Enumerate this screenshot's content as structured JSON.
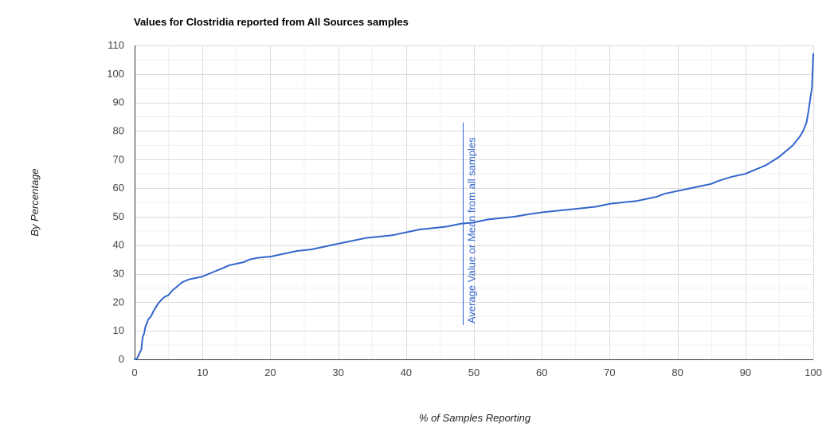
{
  "chart_data": {
    "type": "line",
    "title": "Values for Clostridia reported from All Sources samples",
    "xlabel": "% of Samples Reporting",
    "ylabel": "By Percentage",
    "xlim": [
      0,
      100
    ],
    "ylim": [
      0,
      110
    ],
    "x_ticks": [
      0,
      10,
      20,
      30,
      40,
      50,
      60,
      70,
      80,
      90,
      100
    ],
    "y_ticks": [
      0,
      10,
      20,
      30,
      40,
      50,
      60,
      70,
      80,
      90,
      100,
      110
    ],
    "grid": true,
    "colors": {
      "series": "#3366cc",
      "grid_major": "#dddddd",
      "grid_minor": "#f0f0f0",
      "axis_text": "#444444",
      "title_text": "#000000"
    },
    "annotation": {
      "text": "Average Value or Mean from all samples",
      "x": 48.4,
      "y_range": [
        12,
        83
      ]
    },
    "series": [
      {
        "x": [
          0,
          0.2,
          0.4,
          0.6,
          0.8,
          1.0,
          1.2,
          1.4,
          1.6,
          1.8,
          2.0,
          2.4,
          2.8,
          3.2,
          3.6,
          4.0,
          4.5,
          5.0,
          5.5,
          6.0,
          6.5,
          7.0,
          7.5,
          8.0,
          9.0,
          10,
          11,
          12,
          13,
          14,
          15,
          16,
          17,
          18,
          19,
          20,
          22,
          24,
          26,
          28,
          30,
          32,
          34,
          36,
          38,
          40,
          42,
          44,
          46,
          48,
          50,
          52,
          54,
          56,
          58,
          60,
          62,
          64,
          66,
          68,
          70,
          72,
          74,
          76,
          77,
          78,
          80,
          82,
          84,
          85,
          86,
          88,
          90,
          91,
          92,
          93,
          94,
          95,
          96,
          97,
          97.5,
          98,
          98.5,
          99,
          99.3,
          99.6,
          99.8,
          100
        ],
        "y": [
          0,
          0,
          0.5,
          1.5,
          2.5,
          3.5,
          8,
          9,
          11.5,
          12.5,
          14,
          15,
          17,
          18.5,
          20,
          21,
          22,
          22.5,
          24,
          25,
          26,
          27,
          27.5,
          28,
          28.5,
          29,
          30,
          31,
          32,
          33,
          33.5,
          34,
          35,
          35.5,
          35.8,
          36,
          37,
          38,
          38.5,
          39.5,
          40.5,
          41.5,
          42.5,
          43,
          43.5,
          44.5,
          45.5,
          46,
          46.5,
          47.5,
          48,
          49,
          49.5,
          50,
          50.8,
          51.5,
          52,
          52.5,
          53,
          53.5,
          54.5,
          55,
          55.5,
          56.5,
          57,
          58,
          59,
          60,
          61,
          61.5,
          62.5,
          64,
          65,
          66,
          67,
          68,
          69.5,
          71,
          73,
          75,
          76.5,
          78,
          80,
          83,
          87,
          92,
          95,
          107
        ]
      }
    ]
  }
}
